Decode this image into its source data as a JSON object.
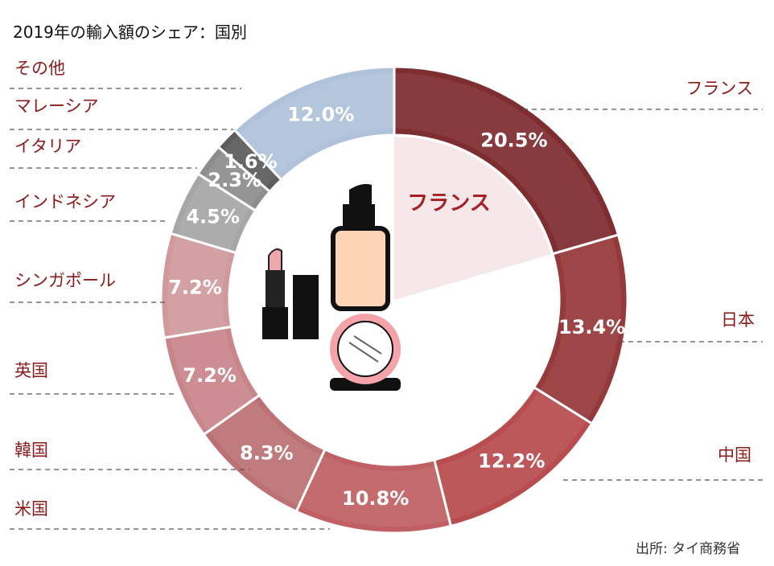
{
  "chart_data": {
    "type": "pie",
    "title": "2019年の輸入額のシェア：国別",
    "categories": [
      "フランス",
      "日本",
      "中国",
      "米国",
      "韓国",
      "英国",
      "シンガポール",
      "インドネシア",
      "イタリア",
      "マレーシア",
      "その他"
    ],
    "values": [
      20.5,
      13.4,
      12.2,
      10.8,
      8.3,
      7.2,
      7.2,
      4.5,
      2.3,
      1.6,
      12.0
    ],
    "value_labels": [
      "20.5%",
      "13.4%",
      "12.2%",
      "10.8%",
      "8.3%",
      "7.2%",
      "7.2%",
      "4.5%",
      "2.3%",
      "1.6%",
      "12.0%"
    ],
    "colors": [
      "#7e2d30",
      "#95393a",
      "#b84c4e",
      "#c06064",
      "#bc7174",
      "#c9868a",
      "#d09a9d",
      "#a6a6a6",
      "#8d8d8d",
      "#5c5c5c",
      "#afc2d9"
    ],
    "highlight": "フランス",
    "highlight_color": "#a51f24",
    "highlight_fill": "#f6e7e8"
  },
  "source": "出所: タイ商務省"
}
